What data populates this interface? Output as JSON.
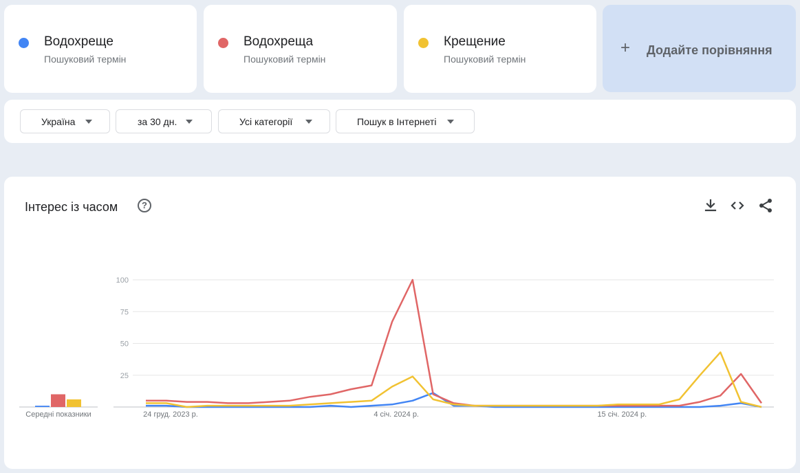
{
  "terms": [
    {
      "name": "Водохреще",
      "sub": "Пошуковий термін",
      "color": "#4285f4"
    },
    {
      "name": "Водохреща",
      "sub": "Пошуковий термін",
      "color": "#e06666"
    },
    {
      "name": "Крещение",
      "sub": "Пошуковий термін",
      "color": "#f1c232"
    }
  ],
  "add_compare": {
    "icon": "plus-icon",
    "label": "Додайте порівняння"
  },
  "filters": [
    {
      "label": "Україна"
    },
    {
      "label": "за 30 дн."
    },
    {
      "label": "Усі категорії"
    },
    {
      "label": "Пошук в Інтернеті"
    }
  ],
  "panel": {
    "title": "Інтерес із часом",
    "help_icon": "help-circle-icon",
    "tools": [
      "download-icon",
      "embed-code-icon",
      "share-icon"
    ]
  },
  "chart_data": {
    "type": "line",
    "ylim": [
      0,
      100
    ],
    "y_ticks": [
      "25",
      "50",
      "75",
      "100"
    ],
    "x_tick_labels": [
      {
        "index": 0,
        "label": "24 груд. 2023 р."
      },
      {
        "index": 11,
        "label": "4 січ. 2024 р."
      },
      {
        "index": 22,
        "label": "15 січ. 2024 р."
      }
    ],
    "averages_label": "Середні показники",
    "averages": [
      {
        "series": "Водохреще",
        "value": 1
      },
      {
        "series": "Водохреща",
        "value": 10
      },
      {
        "series": "Крещение",
        "value": 6
      }
    ],
    "series": [
      {
        "name": "Водохреще",
        "color": "#4285f4",
        "values": [
          1,
          1,
          0,
          0,
          0,
          0,
          0,
          0,
          0,
          1,
          0,
          1,
          2,
          5,
          11,
          1,
          1,
          0,
          0,
          0,
          0,
          0,
          0,
          0,
          0,
          0,
          0,
          0,
          1,
          3,
          0
        ]
      },
      {
        "name": "Водохреща",
        "color": "#e06666",
        "values": [
          5,
          5,
          4,
          4,
          3,
          3,
          4,
          5,
          8,
          10,
          14,
          17,
          67,
          100,
          10,
          3,
          1,
          1,
          1,
          1,
          1,
          1,
          1,
          1,
          1,
          1,
          1,
          4,
          9,
          26,
          3
        ]
      },
      {
        "name": "Крещение",
        "color": "#f1c232",
        "values": [
          3,
          3,
          0,
          1,
          1,
          1,
          1,
          1,
          2,
          3,
          4,
          5,
          16,
          24,
          6,
          2,
          1,
          1,
          1,
          1,
          1,
          1,
          1,
          2,
          2,
          2,
          6,
          25,
          43,
          4,
          0
        ]
      }
    ]
  }
}
